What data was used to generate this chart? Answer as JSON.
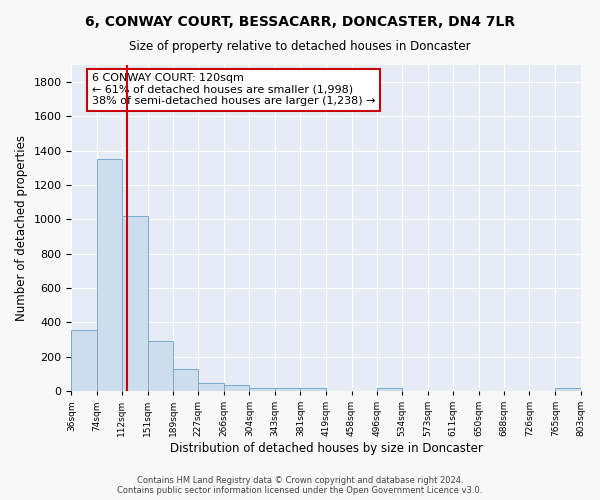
{
  "title": "6, CONWAY COURT, BESSACARR, DONCASTER, DN4 7LR",
  "subtitle": "Size of property relative to detached houses in Doncaster",
  "xlabel": "Distribution of detached houses by size in Doncaster",
  "ylabel": "Number of detached properties",
  "bar_color": "#ccdded",
  "bar_edge_color": "#7aaac8",
  "background_color": "#e6ecf6",
  "grid_color": "#ffffff",
  "red_line_x": 120,
  "annotation_line1": "6 CONWAY COURT: 120sqm",
  "annotation_line2": "← 61% of detached houses are smaller (1,998)",
  "annotation_line3": "38% of semi-detached houses are larger (1,238) →",
  "footnote1": "Contains HM Land Registry data © Crown copyright and database right 2024.",
  "footnote2": "Contains public sector information licensed under the Open Government Licence v3.0.",
  "bin_edges": [
    36,
    74,
    112,
    151,
    189,
    227,
    266,
    304,
    343,
    381,
    419,
    458,
    496,
    534,
    573,
    611,
    650,
    688,
    726,
    765,
    803
  ],
  "bin_labels": [
    "36sqm",
    "74sqm",
    "112sqm",
    "151sqm",
    "189sqm",
    "227sqm",
    "266sqm",
    "304sqm",
    "343sqm",
    "381sqm",
    "419sqm",
    "458sqm",
    "496sqm",
    "534sqm",
    "573sqm",
    "611sqm",
    "650sqm",
    "688sqm",
    "726sqm",
    "765sqm",
    "803sqm"
  ],
  "counts": [
    355,
    1355,
    1020,
    290,
    130,
    45,
    35,
    20,
    20,
    18,
    0,
    0,
    18,
    0,
    0,
    0,
    0,
    0,
    0,
    18
  ],
  "ylim": [
    0,
    1900
  ],
  "xlim": [
    36,
    803
  ],
  "yticks": [
    0,
    200,
    400,
    600,
    800,
    1000,
    1200,
    1400,
    1600,
    1800
  ]
}
